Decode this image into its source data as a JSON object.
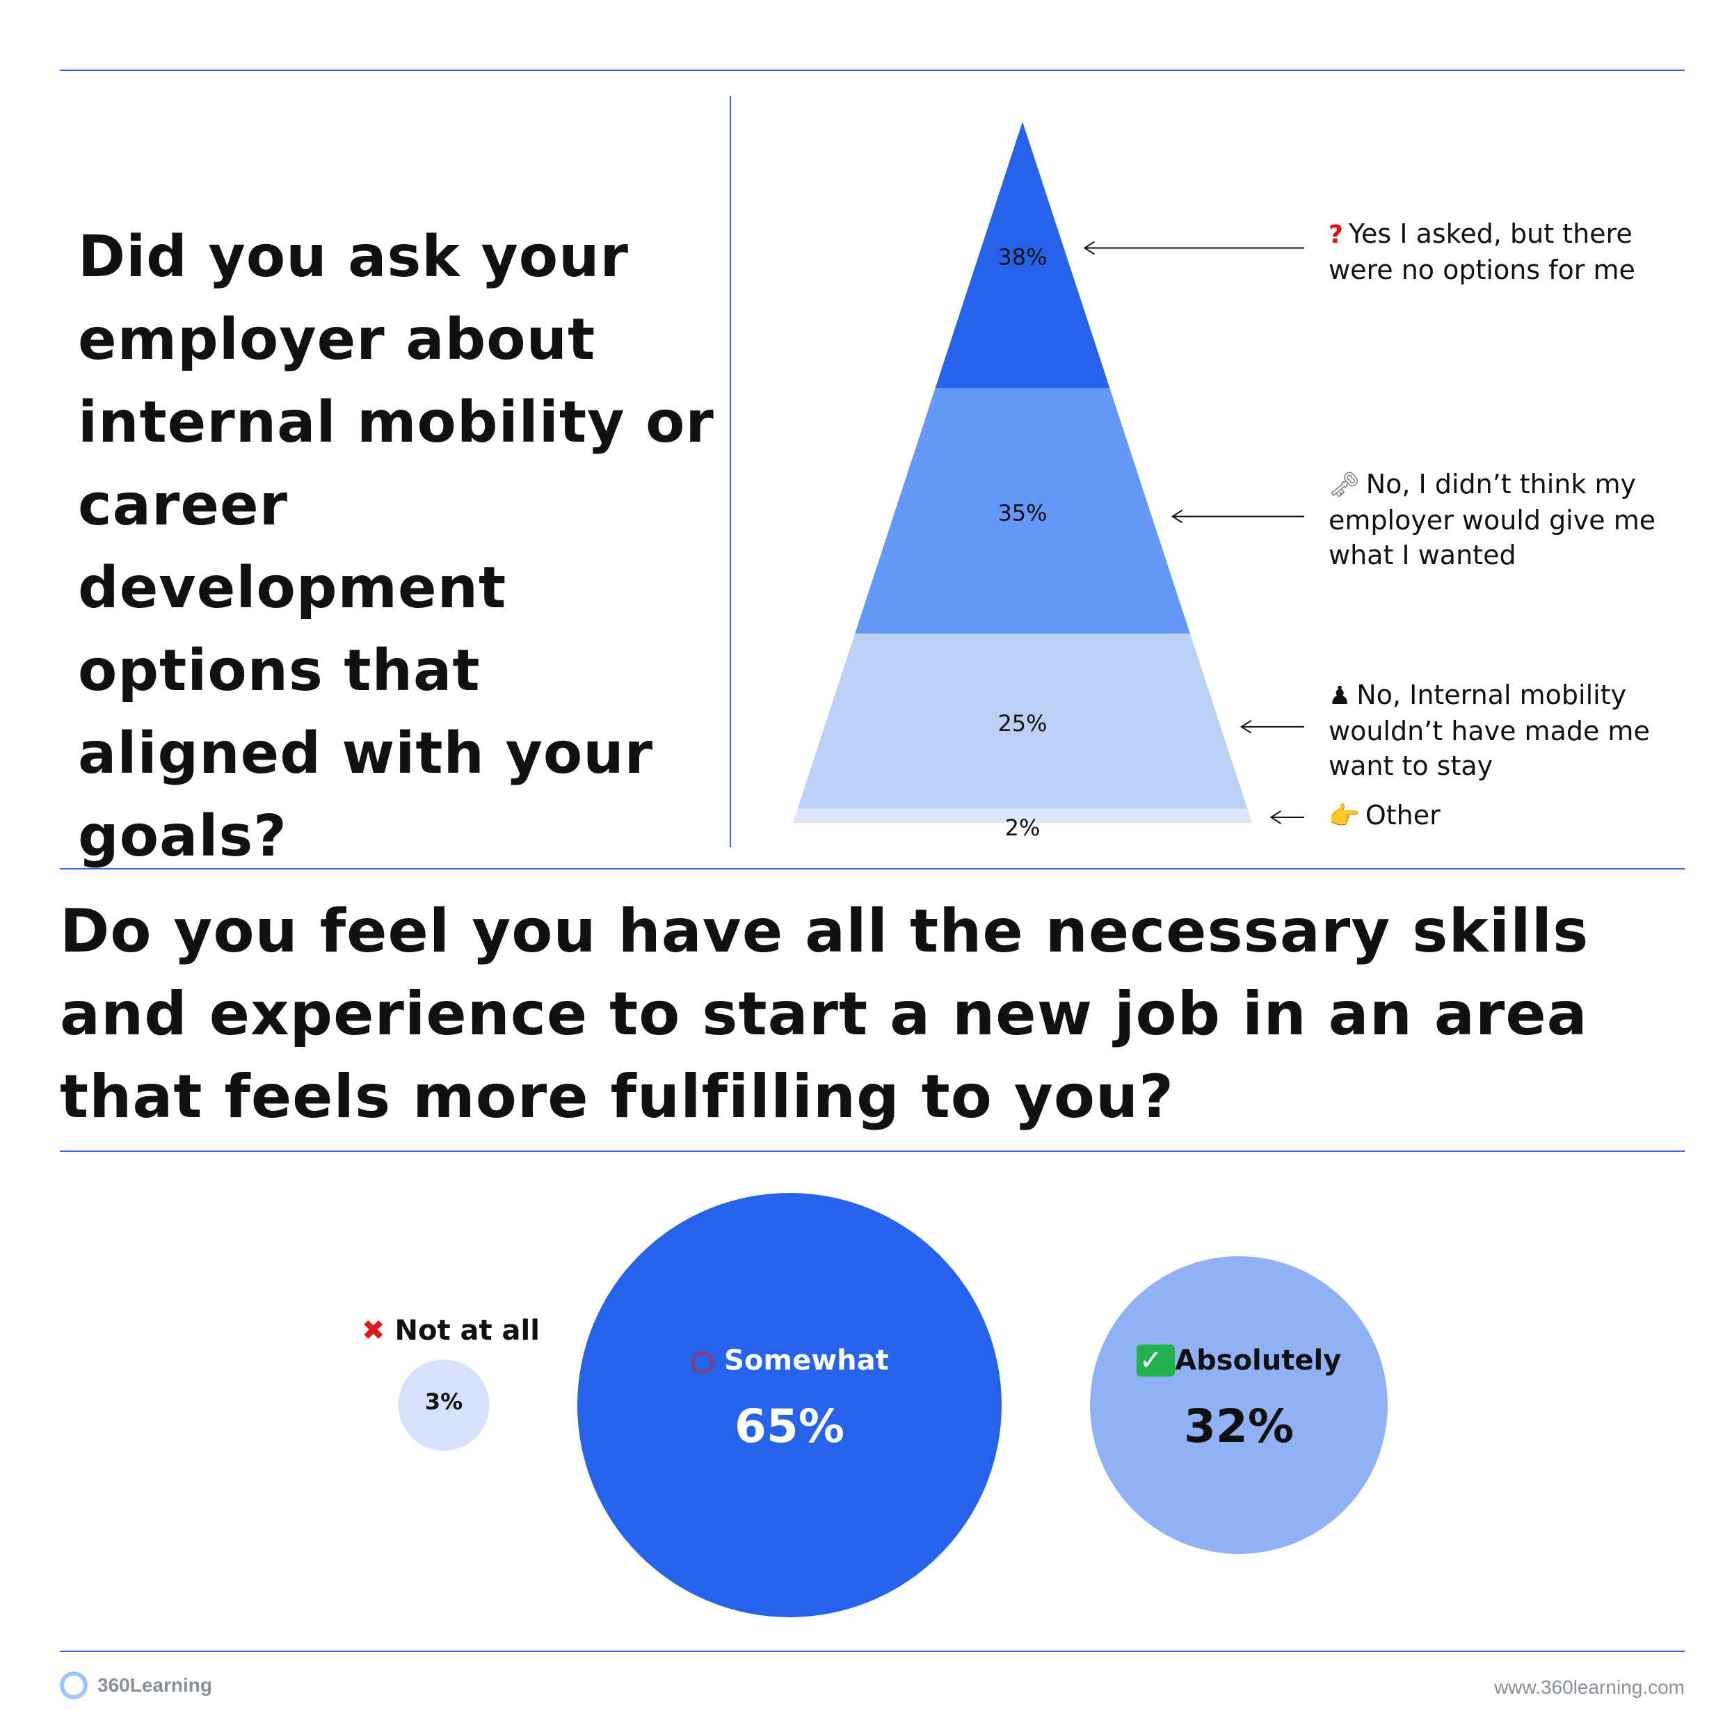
{
  "question1": "Did you ask your employer about internal mobility or career development options that aligned with your goals?",
  "question2": "Do you feel you have all the necessary skills and experience to start a new job in an area that feels more fulfilling to you?",
  "chart_data": [
    {
      "type": "pyramid",
      "colors": [
        "#2563eb",
        "#6497f7",
        "#bcd0f5",
        "#dce7fb"
      ],
      "segments": [
        {
          "icon": "red-question-mark-icon",
          "icon_glyph": "?",
          "label": "Yes I asked, but there were no options for me",
          "value": 38,
          "value_label": "38%"
        },
        {
          "icon": "key-icon",
          "icon_glyph": "🗝",
          "label": "No, I didn’t think my employer would give me what I wanted",
          "value": 35,
          "value_label": "35%"
        },
        {
          "icon": "chess-pawn-icon",
          "icon_glyph": "♟",
          "label": "No, Internal mobility wouldn’t have made me want to stay",
          "value": 25,
          "value_label": "25%"
        },
        {
          "icon": "pointing-hand-icon",
          "icon_glyph": "👉",
          "label": "Other",
          "value": 2,
          "value_label": "2%"
        }
      ]
    },
    {
      "type": "bubble",
      "items": [
        {
          "icon": "red-cross-icon",
          "icon_glyph": "✖",
          "label": "Not at all",
          "value": 3,
          "value_label": "3%",
          "color": "#d6e2fb"
        },
        {
          "icon": "red-circle-icon",
          "icon_glyph": "○",
          "label": "Somewhat",
          "value": 65,
          "value_label": "65%",
          "color": "#2563eb"
        },
        {
          "icon": "green-check-icon",
          "icon_glyph": "✓",
          "label": "Absolutely",
          "value": 32,
          "value_label": "32%",
          "color": "#91b1f7"
        }
      ]
    }
  ],
  "footer": {
    "brand": "360Learning",
    "url": "www.360learning.com"
  }
}
